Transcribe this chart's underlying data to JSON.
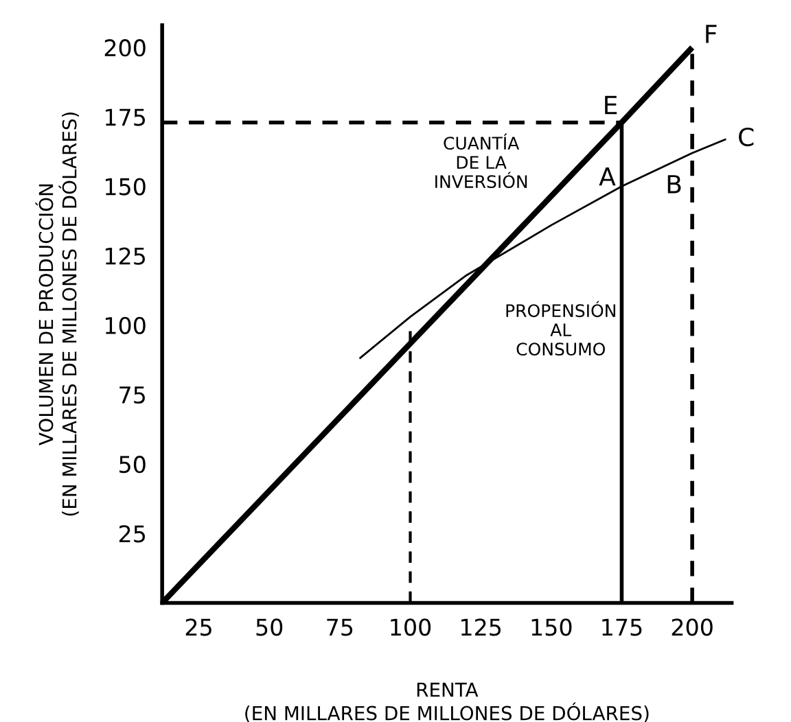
{
  "chart_data": {
    "type": "line",
    "xlabel": "RENTA\n(EN MILLARES DE MILLONES DE DÓLARES)",
    "ylabel": "VOLUMEN DE PRODUCCIÓN\n(EN MILLARES DE MILLONES DE DÓLARES)",
    "xlim": [
      12,
      214
    ],
    "ylim": [
      0,
      208
    ],
    "xticks": [
      25,
      50,
      75,
      100,
      125,
      150,
      175,
      200
    ],
    "yticks": [
      25,
      50,
      75,
      100,
      125,
      150,
      175,
      200
    ],
    "grid": false,
    "legend": false,
    "marker": "none",
    "series": [
      {
        "color": "#000000",
        "line_style": "solid",
        "x": [
          12,
          175,
          200
        ],
        "values": [
          0,
          173,
          200
        ]
      },
      {
        "color": "#000000",
        "line_style": "solid",
        "x": [
          82,
          100,
          120,
          150,
          175,
          200,
          212
        ],
        "values": [
          88,
          103,
          118,
          136,
          150,
          162,
          167
        ]
      },
      {
        "color": "#000000",
        "line_style": "dashed",
        "x": [
          12,
          175
        ],
        "values": [
          173,
          173
        ]
      },
      {
        "color": "#000000",
        "line_style": "solid",
        "x": [
          175,
          175
        ],
        "values": [
          0,
          173
        ]
      },
      {
        "color": "#000000",
        "line_style": "dashed",
        "x": [
          100,
          100
        ],
        "values": [
          0,
          100
        ]
      },
      {
        "color": "#000000",
        "line_style": "dashed",
        "x": [
          200,
          200
        ],
        "values": [
          0,
          200
        ]
      }
    ],
    "annotations": [
      {
        "text": "E",
        "x": 175,
        "y": 173
      },
      {
        "text": "F",
        "x": 200,
        "y": 200
      },
      {
        "text": "C",
        "x": 212,
        "y": 167
      },
      {
        "text": "A",
        "x": 175,
        "y": 150
      },
      {
        "text": "B",
        "x": 200,
        "y": 150
      },
      "CUANTÍA\nDE LA\nINVERSIÓN",
      "PROPENSIÓN\nAL\nCONSUMO"
    ]
  }
}
